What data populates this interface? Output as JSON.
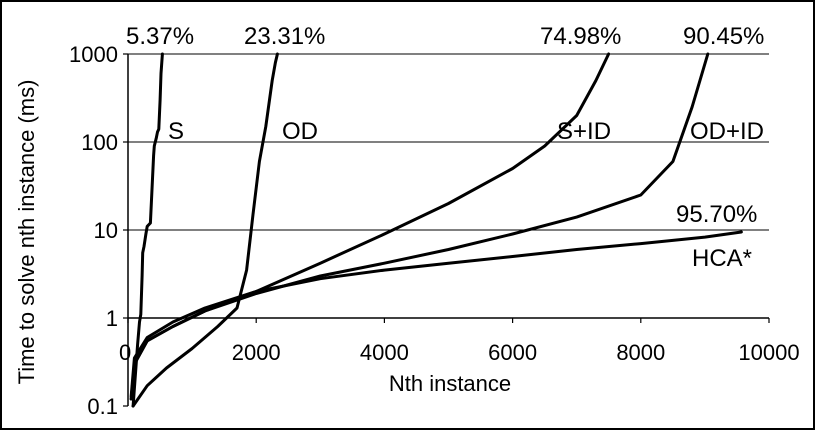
{
  "chart_data": {
    "type": "line",
    "title": "",
    "xlabel": "Nth instance",
    "ylabel": "Time to solve nth instance (ms)",
    "xlim": [
      0,
      10000
    ],
    "ylim": [
      0.1,
      1000
    ],
    "yscale": "log",
    "xticks": [
      "0",
      "2000",
      "4000",
      "6000",
      "8000",
      "10000"
    ],
    "yticks": [
      "0.1",
      "1",
      "10",
      "100",
      "1000"
    ],
    "grid": "horizontal major gridlines",
    "legend": "none",
    "series": [
      {
        "name": "S",
        "end_label": "5.37%",
        "x": [
          80,
          150,
          180,
          200,
          220,
          230,
          250,
          280,
          300,
          350,
          400,
          410,
          440,
          460,
          480,
          500,
          515,
          537
        ],
        "y": [
          0.1,
          0.5,
          0.9,
          1.1,
          3.0,
          5.5,
          6.5,
          9.0,
          11,
          12,
          70,
          90,
          110,
          130,
          140,
          300,
          600,
          1000
        ]
      },
      {
        "name": "OD",
        "end_label": "23.31%",
        "x": [
          80,
          300,
          600,
          1000,
          1400,
          1700,
          1850,
          1950,
          2050,
          2150,
          2250,
          2300,
          2331
        ],
        "y": [
          0.1,
          0.17,
          0.27,
          0.45,
          0.8,
          1.3,
          3.5,
          15,
          60,
          150,
          500,
          800,
          1000
        ]
      },
      {
        "name": "S+ID",
        "end_label": "74.98%",
        "x": [
          50,
          100,
          300,
          700,
          1200,
          2000,
          3000,
          4000,
          5000,
          6000,
          6500,
          7000,
          7300,
          7498
        ],
        "y": [
          0.12,
          0.3,
          0.55,
          0.8,
          1.2,
          2.0,
          4.2,
          9.0,
          20,
          50,
          90,
          200,
          500,
          1000
        ]
      },
      {
        "name": "OD+ID",
        "end_label": "90.45%",
        "x": [
          50,
          100,
          300,
          700,
          1200,
          2000,
          3000,
          4000,
          5000,
          6000,
          7000,
          8000,
          8500,
          8800,
          9045
        ],
        "y": [
          0.12,
          0.3,
          0.55,
          0.8,
          1.2,
          1.9,
          3.0,
          4.2,
          6.0,
          9.0,
          14,
          25,
          60,
          250,
          1000
        ]
      },
      {
        "name": "HCA*",
        "end_label": "95.70%",
        "x": [
          50,
          100,
          300,
          700,
          1200,
          2000,
          3000,
          4000,
          5000,
          6000,
          7000,
          8000,
          9000,
          9570
        ],
        "y": [
          0.13,
          0.35,
          0.6,
          0.9,
          1.3,
          2.0,
          2.8,
          3.5,
          4.2,
          5.0,
          6.0,
          7.0,
          8.3,
          9.5
        ]
      }
    ]
  }
}
